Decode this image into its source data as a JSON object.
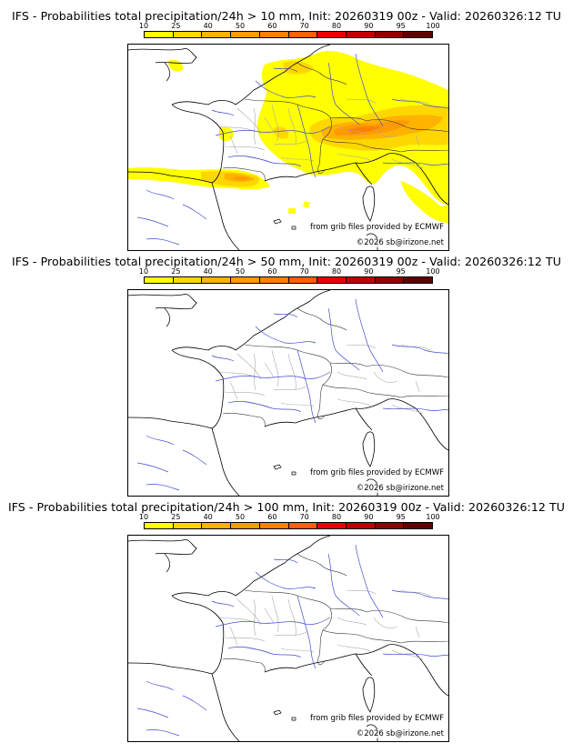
{
  "colorbar": {
    "ticks": [
      "10",
      "25",
      "40",
      "50",
      "60",
      "70",
      "80",
      "90",
      "95",
      "100"
    ],
    "colors": [
      "#ffff00",
      "#ffd700",
      "#ffb200",
      "#ff9a00",
      "#ff8000",
      "#ff6000",
      "#e80000",
      "#c00000",
      "#900000",
      "#600000"
    ]
  },
  "panels": [
    {
      "title": "IFS - Probabilities total precipitation/24h > 10 mm, Init: 20260319 00z - Valid: 20260326:12 TU",
      "credit_grib": "from grib files provided by ECMWF",
      "credit_copy": "©2026 sb@irizone.net"
    },
    {
      "title": "IFS - Probabilities total precipitation/24h > 50 mm, Init: 20260319 00z - Valid: 20260326:12 TU",
      "credit_grib": "from grib files provided by ECMWF",
      "credit_copy": "©2026 sb@irizone.net"
    },
    {
      "title": "IFS - Probabilities total precipitation/24h > 100 mm, Init: 20260319 00z - Valid: 20260326:12 TU",
      "credit_grib": "from grib files provided by ECMWF",
      "credit_copy": "©2026 sb@irizone.net"
    }
  ]
}
